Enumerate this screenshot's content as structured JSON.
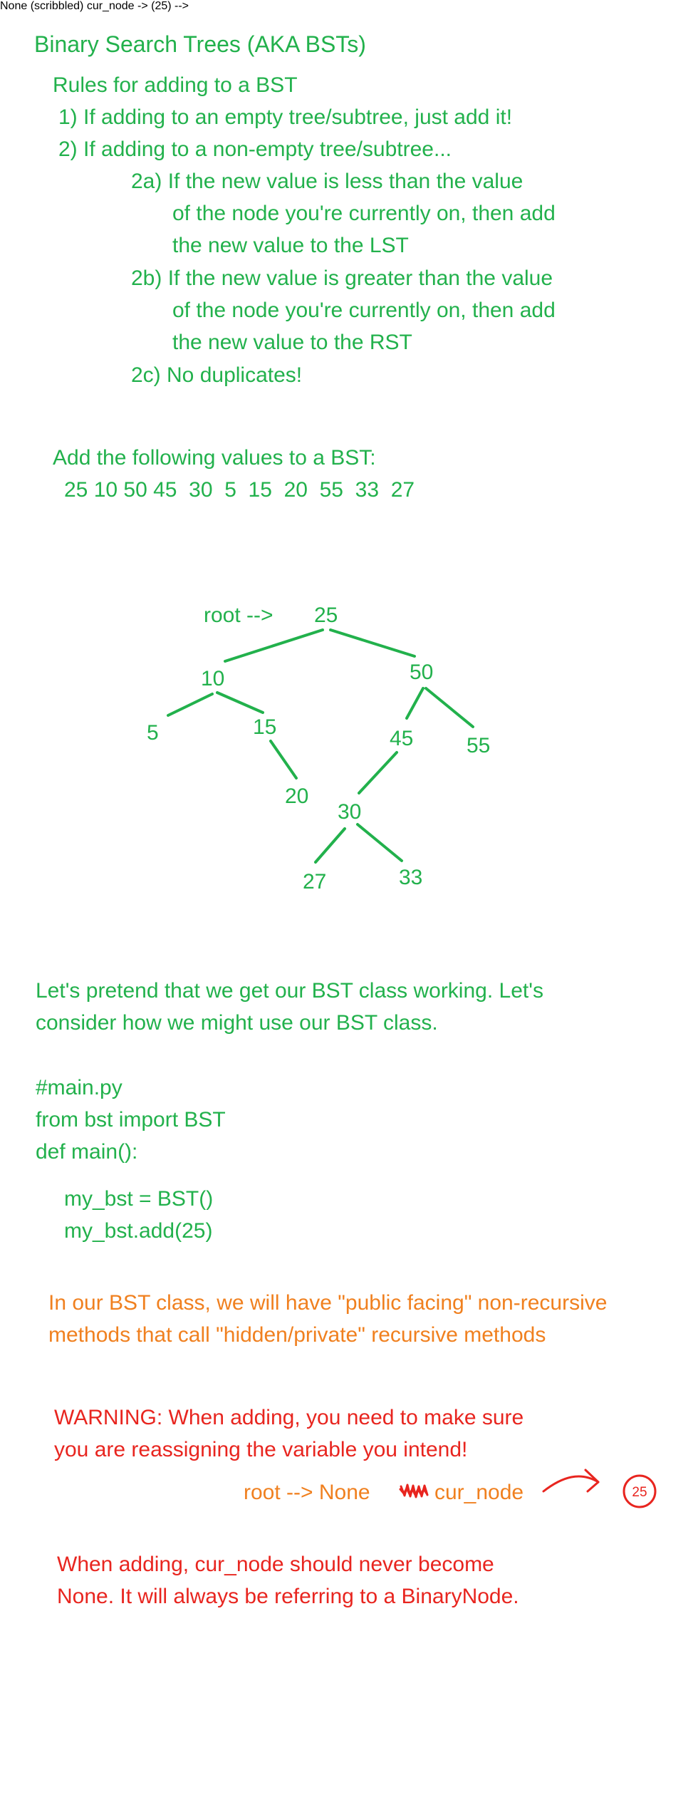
{
  "title": "Binary Search Trees (AKA BSTs)",
  "rules": {
    "heading": "Rules for adding to a BST",
    "r1": "1) If adding to an empty tree/subtree, just add it!",
    "r2": "2) If adding to a non-empty tree/subtree...",
    "r2a_1": "2a) If the new value is less than the value",
    "r2a_2": "of the node you're currently on, then add",
    "r2a_3": "the new value to the LST",
    "r2b_1": "2b) If the new value is greater than the value",
    "r2b_2": "of the node you're currently on, then add",
    "r2b_3": "the new value to the RST",
    "r2c": "2c) No duplicates!"
  },
  "exercise": {
    "prompt": "Add the following values to a BST:",
    "values": "25 10 50 45  30  5  15  20  55  33  27"
  },
  "tree": {
    "root_label": "root -->",
    "line_color": "#22b14c",
    "nodes": {
      "n25": "25",
      "n10": "10",
      "n50": "50",
      "n5": "5",
      "n15": "15",
      "n45": "45",
      "n55": "55",
      "n20": "20",
      "n30": "30",
      "n27": "27",
      "n33": "33"
    }
  },
  "usage": {
    "line1": "Let's pretend that we get our BST class working. Let's",
    "line2": "consider how we might use our BST class."
  },
  "code": {
    "c1": "#main.py",
    "c2": "from bst import BST",
    "c3": "def main():",
    "c4": "my_bst = BST()",
    "c5": "my_bst.add(25)"
  },
  "note": {
    "line1": "In our BST class, we will have \"public facing\" non-recursive",
    "line2": "methods that call \"hidden/private\" recursive methods"
  },
  "warning": {
    "line1": "WARNING: When adding, you need to make sure",
    "line2": "you are reassigning the variable you intend!"
  },
  "diagram": {
    "root_none": "root --> None",
    "cur_node": "cur_node",
    "circled_value": "25",
    "scribble_icon": "scribble-icon",
    "arrow_icon": "curved-arrow-icon"
  },
  "closing": {
    "line1": "When adding, cur_node should never become",
    "line2": "None. It will always be referring to a BinaryNode."
  },
  "colors": {
    "green": "#22b14c",
    "orange": "#f0801f",
    "red": "#e8251f"
  }
}
